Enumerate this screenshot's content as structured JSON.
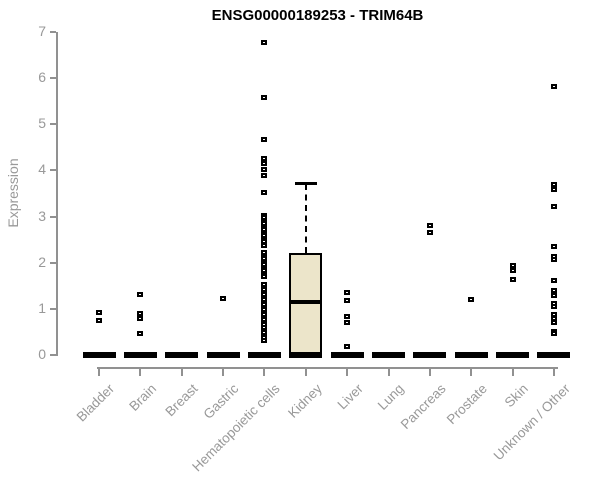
{
  "chart_data": {
    "type": "boxplot",
    "title": "ENSG00000189253 - TRIM64B",
    "ylabel": "Expression",
    "xlabel": "",
    "ylim": [
      0,
      7
    ],
    "yticks": [
      0,
      1,
      2,
      3,
      4,
      5,
      6,
      7
    ],
    "grid": false,
    "legend": null,
    "box_fill_color": "#ece5ca",
    "axis_color": "#919191",
    "tick_label_color": "#999999",
    "marker_color": "#000000",
    "categories": [
      "Bladder",
      "Brain",
      "Breast",
      "Gastric",
      "Hematopoietic cells",
      "Kidney",
      "Liver",
      "Lung",
      "Pancreas",
      "Prostate",
      "Skin",
      "Unknown / Other"
    ],
    "series": [
      {
        "category": "Bladder",
        "box": {
          "q1": 0,
          "median": 0,
          "q3": 0,
          "whisker_low": 0,
          "whisker_high": 0
        },
        "points": [
          0.91,
          0.74
        ]
      },
      {
        "category": "Brain",
        "box": {
          "q1": 0,
          "median": 0,
          "q3": 0,
          "whisker_low": 0,
          "whisker_high": 0
        },
        "points": [
          1.29,
          0.89,
          0.78,
          0.46
        ]
      },
      {
        "category": "Breast",
        "box": {
          "q1": 0,
          "median": 0,
          "q3": 0,
          "whisker_low": 0,
          "whisker_high": 0
        },
        "points": []
      },
      {
        "category": "Gastric",
        "box": {
          "q1": 0,
          "median": 0,
          "q3": 0,
          "whisker_low": 0,
          "whisker_high": 0
        },
        "points": [
          1.21
        ]
      },
      {
        "category": "Hematopoietic cells",
        "box": {
          "q1": 0,
          "median": 0,
          "q3": 0,
          "whisker_low": 0,
          "whisker_high": 0
        },
        "points": [
          6.77,
          5.56,
          4.65,
          4.25,
          4.13,
          4.0,
          3.88,
          3.51,
          3.02,
          2.96,
          2.89,
          2.83,
          2.76,
          2.7,
          2.63,
          2.57,
          2.5,
          2.44,
          2.37,
          2.2,
          2.13,
          2.07,
          2.0,
          1.94,
          1.87,
          1.81,
          1.74,
          1.68,
          1.52,
          1.46,
          1.41,
          1.35,
          1.3,
          1.24,
          1.19,
          1.13,
          1.08,
          1.02,
          0.97,
          0.91,
          0.86,
          0.8,
          0.75,
          0.69,
          0.64,
          0.58,
          0.53,
          0.47,
          0.42,
          0.36,
          0.31
        ]
      },
      {
        "category": "Kidney",
        "box": {
          "q1": 0,
          "median": 1.15,
          "q3": 2.2,
          "whisker_low": 0,
          "whisker_high": 3.7
        },
        "points": []
      },
      {
        "category": "Liver",
        "box": {
          "q1": 0,
          "median": 0,
          "q3": 0,
          "whisker_low": 0,
          "whisker_high": 0
        },
        "points": [
          1.34,
          1.17,
          0.82,
          0.69,
          0.17
        ]
      },
      {
        "category": "Lung",
        "box": {
          "q1": 0,
          "median": 0,
          "q3": 0,
          "whisker_low": 0,
          "whisker_high": 0
        },
        "points": []
      },
      {
        "category": "Pancreas",
        "box": {
          "q1": 0,
          "median": 0,
          "q3": 0,
          "whisker_low": 0,
          "whisker_high": 0
        },
        "points": [
          2.79,
          2.65
        ]
      },
      {
        "category": "Prostate",
        "box": {
          "q1": 0,
          "median": 0,
          "q3": 0,
          "whisker_low": 0,
          "whisker_high": 0
        },
        "points": [
          1.19
        ]
      },
      {
        "category": "Skin",
        "box": {
          "q1": 0,
          "median": 0,
          "q3": 0,
          "whisker_low": 0,
          "whisker_high": 0
        },
        "points": [
          1.93,
          1.82,
          1.62
        ]
      },
      {
        "category": "Unknown / Other",
        "box": {
          "q1": 0,
          "median": 0,
          "q3": 0,
          "whisker_low": 0,
          "whisker_high": 0
        },
        "points": [
          5.8,
          3.68,
          3.57,
          3.2,
          2.34,
          2.12,
          2.05,
          1.6,
          1.39,
          1.28,
          1.1,
          1.04,
          0.87,
          0.78,
          0.69,
          0.5,
          0.45
        ]
      }
    ]
  }
}
